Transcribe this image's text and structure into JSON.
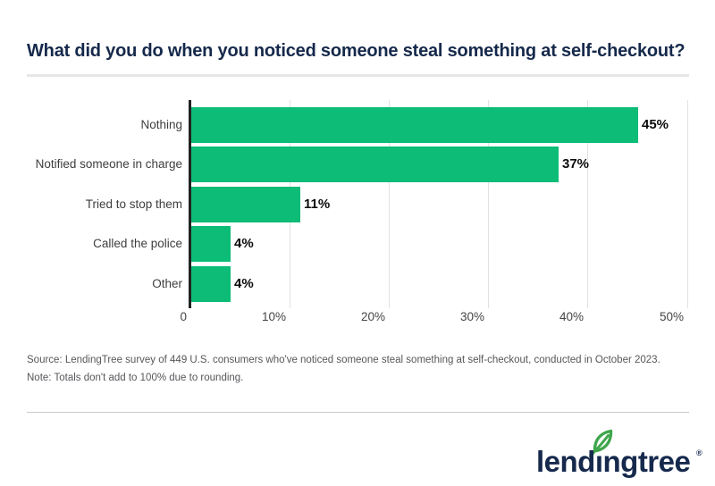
{
  "title": {
    "text": "What did you do when you noticed someone steal something at self-checkout?"
  },
  "chart_data": {
    "type": "bar",
    "orientation": "horizontal",
    "title": "What did you do when you noticed someone steal something at self-checkout?",
    "categories": [
      "Nothing",
      "Notified someone in charge",
      "Tried to stop them",
      "Called the police",
      "Other"
    ],
    "values": [
      45,
      37,
      11,
      4,
      4
    ],
    "value_labels": [
      "45%",
      "37%",
      "11%",
      "4%",
      "4%"
    ],
    "x_ticks": [
      "0",
      "10%",
      "20%",
      "30%",
      "40%",
      "50%"
    ],
    "xlim": [
      0,
      50
    ],
    "xlabel": "",
    "ylabel": "",
    "grid": true,
    "legend": "none"
  },
  "source_note": {
    "source": "Source: LendingTree survey of 449 U.S. consumers who've noticed someone steal something at self-checkout, conducted in October 2023.",
    "note": "Note: Totals don't add to 100% due to rounding."
  },
  "footer": {
    "logo_text": "lendıngtree",
    "registered_mark": "®"
  },
  "colors": {
    "bar_green": "#0cbc77",
    "title_navy": "#15294b",
    "axis_black": "#222222",
    "grid_gray": "#e2e2e2",
    "leaf_green": "#3ea64b"
  }
}
